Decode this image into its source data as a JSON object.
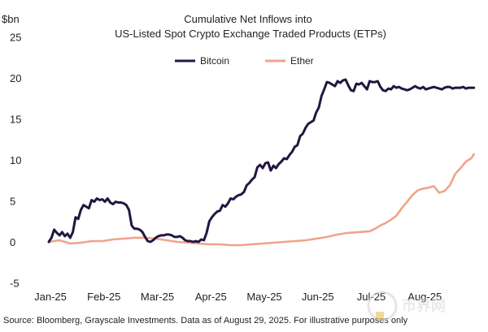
{
  "chart_data": {
    "type": "line",
    "title": "Cumulative Net Inflows into",
    "subtitle": "US-Listed Spot Crypto Exchange Traded Products (ETPs)",
    "ylabel": "$bn",
    "xlabel": "",
    "ylim": [
      -5,
      25
    ],
    "yticks": [
      -5,
      0,
      5,
      10,
      15,
      20,
      25
    ],
    "xlim": [
      0,
      8
    ],
    "xticks": [
      {
        "value": 0,
        "label": "Jan-25"
      },
      {
        "value": 1,
        "label": "Feb-25"
      },
      {
        "value": 2,
        "label": "Mar-25"
      },
      {
        "value": 3,
        "label": "Apr-25"
      },
      {
        "value": 4,
        "label": "May-25"
      },
      {
        "value": 5,
        "label": "Jun-25"
      },
      {
        "value": 6,
        "label": "Jul-25"
      },
      {
        "value": 7,
        "label": "Aug-25"
      }
    ],
    "grid": false,
    "legend_position": "top-center",
    "series": [
      {
        "name": "Bitcoin",
        "color": "#221640",
        "x": [
          0.0,
          0.05,
          0.1,
          0.15,
          0.2,
          0.25,
          0.3,
          0.35,
          0.4,
          0.45,
          0.5,
          0.55,
          0.6,
          0.65,
          0.7,
          0.75,
          0.8,
          0.85,
          0.9,
          0.95,
          1.0,
          1.05,
          1.1,
          1.15,
          1.2,
          1.25,
          1.3,
          1.35,
          1.4,
          1.45,
          1.5,
          1.55,
          1.6,
          1.65,
          1.7,
          1.75,
          1.8,
          1.85,
          1.9,
          1.95,
          2.0,
          2.05,
          2.1,
          2.15,
          2.2,
          2.25,
          2.3,
          2.35,
          2.4,
          2.45,
          2.5,
          2.55,
          2.6,
          2.65,
          2.7,
          2.75,
          2.8,
          2.85,
          2.9,
          2.95,
          3.0,
          3.05,
          3.1,
          3.15,
          3.2,
          3.25,
          3.3,
          3.35,
          3.4,
          3.45,
          3.5,
          3.55,
          3.6,
          3.65,
          3.7,
          3.75,
          3.8,
          3.85,
          3.9,
          3.95,
          4.0,
          4.05,
          4.1,
          4.15,
          4.2,
          4.25,
          4.3,
          4.35,
          4.4,
          4.45,
          4.5,
          4.55,
          4.6,
          4.65,
          4.7,
          4.75,
          4.8,
          4.85,
          4.9,
          4.95,
          5.0,
          5.05,
          5.1,
          5.15,
          5.2,
          5.25,
          5.3,
          5.35,
          5.4,
          5.45,
          5.5,
          5.55,
          5.6,
          5.65,
          5.7,
          5.75,
          5.8,
          5.85,
          5.9,
          5.95,
          6.0,
          6.05,
          6.1,
          6.15,
          6.2,
          6.25,
          6.3,
          6.35,
          6.4,
          6.45,
          6.5,
          6.55,
          6.6,
          6.65,
          6.7,
          6.75,
          6.8,
          6.85,
          6.9,
          6.95,
          7.0,
          7.05,
          7.1,
          7.15,
          7.2,
          7.25,
          7.3,
          7.35,
          7.4,
          7.45,
          7.5,
          7.55,
          7.6,
          7.65,
          7.7,
          7.75,
          7.8,
          7.85,
          7.9,
          7.95
        ],
        "values": [
          0.0,
          0.5,
          1.5,
          1.1,
          0.8,
          1.2,
          0.7,
          1.0,
          0.5,
          1.2,
          3.0,
          2.8,
          3.9,
          4.5,
          4.3,
          4.1,
          5.1,
          4.9,
          5.3,
          5.1,
          5.2,
          4.9,
          5.3,
          4.8,
          4.6,
          4.9,
          4.8,
          4.8,
          4.7,
          4.5,
          3.9,
          2.0,
          1.6,
          1.6,
          1.5,
          1.2,
          0.6,
          0.1,
          0.0,
          0.2,
          0.5,
          0.7,
          0.8,
          0.8,
          0.9,
          0.9,
          0.8,
          0.6,
          0.6,
          0.7,
          0.5,
          0.2,
          0.1,
          0.1,
          0.0,
          0.1,
          0.0,
          0.3,
          0.2,
          1.1,
          2.5,
          3.0,
          3.4,
          3.7,
          3.8,
          4.5,
          4.3,
          4.7,
          5.3,
          5.2,
          5.5,
          5.7,
          5.8,
          6.1,
          6.9,
          7.2,
          7.6,
          7.9,
          9.1,
          9.4,
          9.0,
          9.6,
          9.7,
          8.7,
          9.3,
          9.0,
          9.5,
          9.8,
          10.2,
          10.1,
          10.6,
          11.0,
          11.6,
          11.8,
          12.9,
          13.2,
          13.9,
          14.4,
          14.6,
          14.8,
          15.8,
          16.4,
          17.8,
          18.6,
          19.5,
          19.4,
          19.2,
          19.0,
          19.6,
          19.4,
          19.7,
          19.8,
          19.1,
          18.5,
          18.4,
          19.3,
          19.2,
          19.4,
          19.0,
          18.6,
          19.6,
          19.5,
          19.5,
          19.6,
          18.9,
          18.5,
          18.4,
          18.7,
          18.6,
          19.0,
          18.8,
          18.9,
          18.7,
          18.6,
          18.5,
          18.6,
          18.8,
          19.0,
          18.8,
          18.7,
          18.9,
          18.6,
          18.7,
          18.8,
          18.9,
          18.8,
          18.7,
          18.6,
          18.8,
          18.9,
          18.9,
          18.7,
          18.8,
          18.8,
          18.8,
          18.9,
          18.7,
          18.8,
          18.8,
          18.8
        ]
      },
      {
        "name": "Ether",
        "color": "#f0a48a",
        "x": [
          0.0,
          0.2,
          0.4,
          0.6,
          0.8,
          1.0,
          1.2,
          1.4,
          1.6,
          1.8,
          2.0,
          2.2,
          2.4,
          2.6,
          2.8,
          3.0,
          3.2,
          3.4,
          3.6,
          3.8,
          4.0,
          4.2,
          4.4,
          4.6,
          4.8,
          5.0,
          5.2,
          5.4,
          5.6,
          5.8,
          6.0,
          6.1,
          6.2,
          6.3,
          6.4,
          6.5,
          6.6,
          6.7,
          6.8,
          6.9,
          7.0,
          7.1,
          7.2,
          7.3,
          7.4,
          7.5,
          7.6,
          7.7,
          7.8,
          7.9,
          7.95
        ],
        "values": [
          0.0,
          0.2,
          -0.2,
          -0.1,
          0.1,
          0.1,
          0.3,
          0.4,
          0.5,
          0.5,
          0.4,
          0.2,
          0.0,
          -0.1,
          -0.2,
          -0.3,
          -0.3,
          -0.4,
          -0.4,
          -0.3,
          -0.2,
          -0.1,
          0.0,
          0.1,
          0.2,
          0.4,
          0.6,
          0.9,
          1.1,
          1.2,
          1.3,
          1.6,
          2.0,
          2.3,
          2.7,
          3.2,
          4.1,
          4.9,
          5.7,
          6.3,
          6.5,
          6.6,
          6.8,
          6.0,
          6.2,
          6.9,
          8.3,
          9.0,
          9.8,
          10.2,
          10.7
        ]
      }
    ],
    "source": "Source: Bloomberg, Grayscale Investments. Data as of August 29, 2025. For illustrative purposes only",
    "watermark": "币界网"
  },
  "colors": {
    "bitcoin": "#221640",
    "ether": "#f0a48a",
    "text": "#222222"
  }
}
